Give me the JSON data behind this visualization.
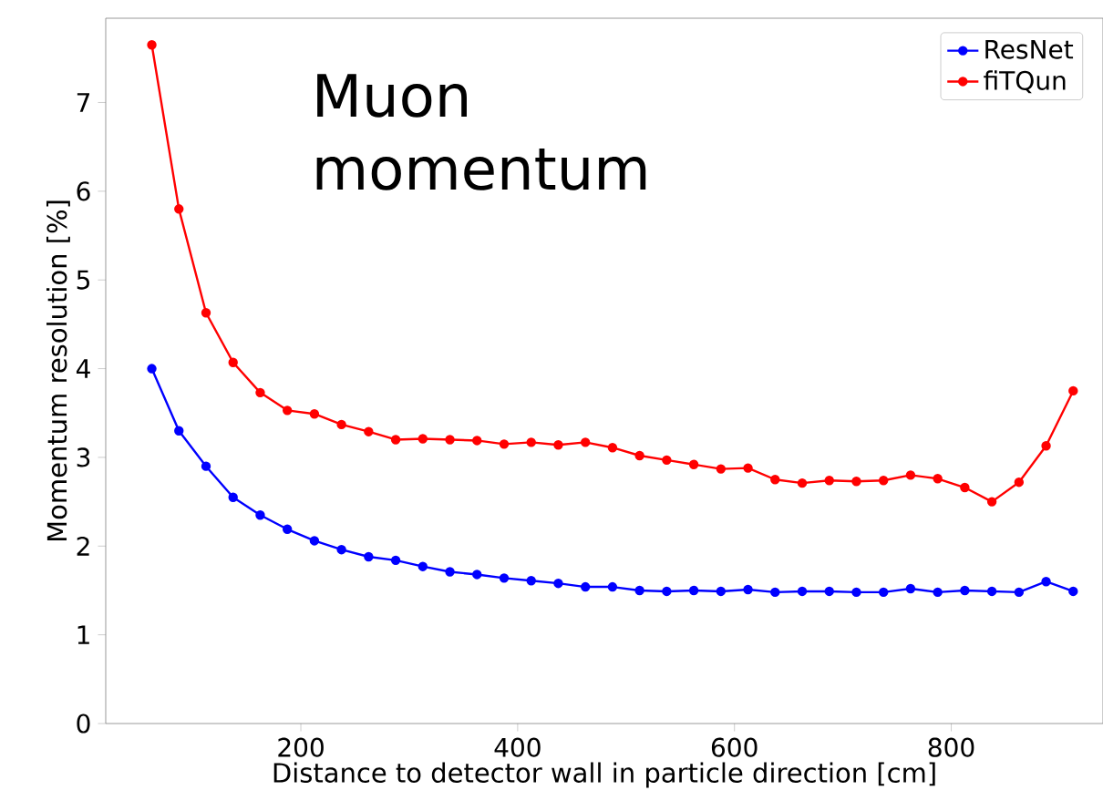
{
  "chart_data": {
    "type": "line",
    "xlabel": "Distance to detector wall in particle direction [cm]",
    "ylabel": "Momentum resolution [%]",
    "annotations": [
      "Muon momentum"
    ],
    "x": [
      62.5,
      87.5,
      112.5,
      137.5,
      162.5,
      187.5,
      212.5,
      237.5,
      262.5,
      287.5,
      312.5,
      337.5,
      362.5,
      387.5,
      412.5,
      437.5,
      462.5,
      487.5,
      512.5,
      537.5,
      562.5,
      587.5,
      612.5,
      637.5,
      662.5,
      687.5,
      712.5,
      737.5,
      762.5,
      787.5,
      812.5,
      837.5,
      862.5,
      887.5,
      912.5
    ],
    "series": [
      {
        "name": "ResNet",
        "color": "#0000ff",
        "values": [
          4.0,
          3.3,
          2.9,
          2.55,
          2.35,
          2.19,
          2.06,
          1.96,
          1.88,
          1.84,
          1.77,
          1.71,
          1.68,
          1.64,
          1.61,
          1.58,
          1.54,
          1.54,
          1.5,
          1.49,
          1.5,
          1.49,
          1.51,
          1.48,
          1.49,
          1.49,
          1.48,
          1.48,
          1.52,
          1.48,
          1.5,
          1.49,
          1.48,
          1.6,
          1.49
        ]
      },
      {
        "name": "fiTQun",
        "color": "#ff0000",
        "values": [
          7.65,
          5.8,
          4.63,
          4.07,
          3.73,
          3.53,
          3.49,
          3.37,
          3.29,
          3.2,
          3.21,
          3.2,
          3.19,
          3.15,
          3.17,
          3.14,
          3.17,
          3.11,
          3.02,
          2.97,
          2.92,
          2.87,
          2.88,
          2.75,
          2.71,
          2.74,
          2.73,
          2.74,
          2.8,
          2.76,
          2.66,
          2.5,
          2.72,
          3.13,
          3.75
        ]
      }
    ],
    "xlim": [
      20,
      940
    ],
    "ylim": [
      0,
      7.95
    ],
    "xticks": [
      200,
      400,
      600,
      800
    ],
    "yticks": [
      0,
      1,
      2,
      3,
      4,
      5,
      6,
      7
    ],
    "legend": "top right",
    "marker": "circle",
    "line_style": "solid",
    "grid": false
  }
}
